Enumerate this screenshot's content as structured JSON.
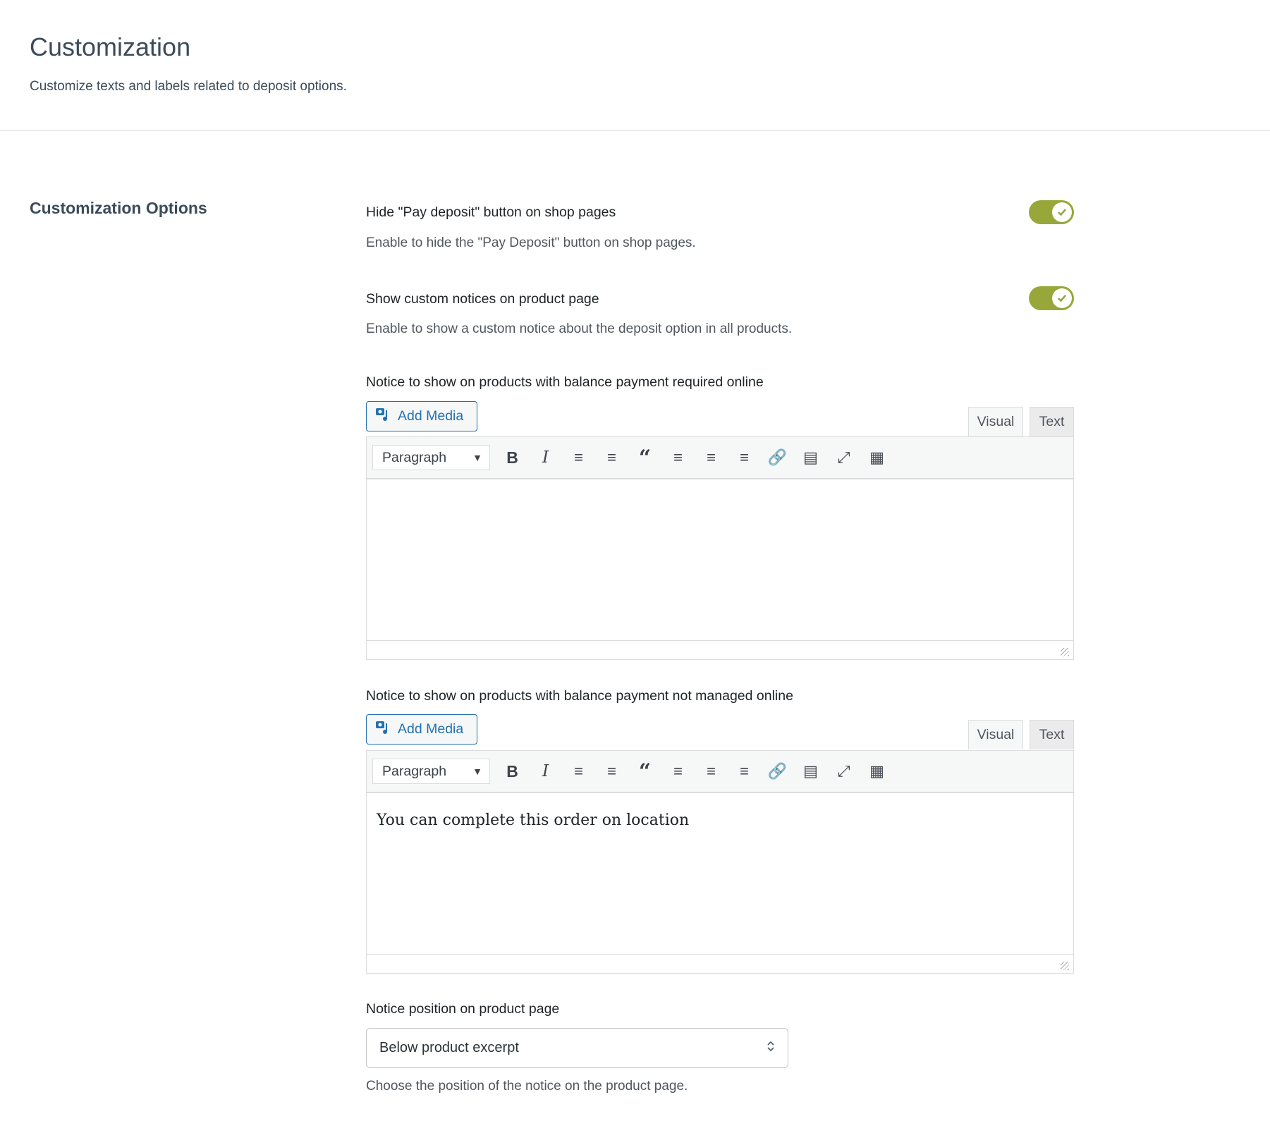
{
  "header": {
    "title": "Customization",
    "subtitle": "Customize texts and labels related to deposit options."
  },
  "section": {
    "title": "Customization Options"
  },
  "options": [
    {
      "label": "Hide \"Pay deposit\" button on shop pages",
      "description": "Enable to hide the \"Pay Deposit\" button on shop pages.",
      "enabled": true
    },
    {
      "label": "Show custom notices on product page",
      "description": "Enable to show a custom notice about the deposit option in all products.",
      "enabled": true
    }
  ],
  "editors": [
    {
      "label": "Notice to show on products with balance payment required online",
      "add_media": "Add Media",
      "tab_visual": "Visual",
      "tab_text": "Text",
      "format": "Paragraph",
      "content": ""
    },
    {
      "label": "Notice to show on products with balance payment not managed online",
      "add_media": "Add Media",
      "tab_visual": "Visual",
      "tab_text": "Text",
      "format": "Paragraph",
      "content": "You can complete this order on location"
    }
  ],
  "position": {
    "label": "Notice position on product page",
    "value": "Below product excerpt",
    "description": "Choose the position of the notice on the product page."
  },
  "colors": {
    "toggle": "#97a73a",
    "link": "#2271b1"
  }
}
